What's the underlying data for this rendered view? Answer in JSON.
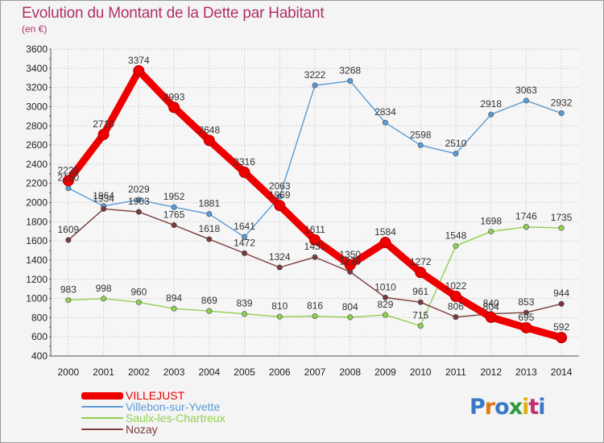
{
  "title": "Evolution du Montant de la Dette par Habitant",
  "unit": "(en €)",
  "logo": {
    "text": "Proxiti",
    "colors": [
      "#3a78c8",
      "#e07a10",
      "#3a78c8",
      "#2c9a3c",
      "#e0b010",
      "#c0306a",
      "#3a78c8"
    ]
  },
  "chart_data": {
    "type": "line",
    "x": [
      "2000",
      "2001",
      "2002",
      "2003",
      "2004",
      "2005",
      "2006",
      "2007",
      "2008",
      "2009",
      "2010",
      "2011",
      "2012",
      "2013",
      "2014"
    ],
    "ylim": [
      400,
      3600
    ],
    "yticks": [
      "400",
      "600",
      "800",
      "1000",
      "1200",
      "1400",
      "1600",
      "1800",
      "2000",
      "2200",
      "2400",
      "2600",
      "2800",
      "3000",
      "3200",
      "3400",
      "3600"
    ],
    "grid": true,
    "legend_position": "bottom-left",
    "series": [
      {
        "name": "VILLEJUST",
        "color": "#ee0000",
        "values": [
          2228,
          2710,
          3374,
          2993,
          2648,
          2316,
          1969,
          1611,
          1350,
          1584,
          1272,
          1022,
          804,
          695,
          592
        ],
        "labels": [
          "2228",
          "2710",
          "3374",
          "2993",
          "2648",
          "2316",
          "1969",
          "1611",
          "1350",
          "1584",
          "1272",
          "1022",
          "804",
          "695",
          "592"
        ]
      },
      {
        "name": "Villebon-sur-Yvette",
        "color": "#5b9bd5",
        "values": [
          2150,
          1964,
          2029,
          1952,
          1881,
          1641,
          2063,
          3222,
          3268,
          2834,
          2598,
          2510,
          2918,
          3063,
          2932
        ],
        "labels": [
          "2150",
          "1964",
          "2029",
          "1952",
          "1881",
          "1641",
          "2063",
          "3222",
          "3268",
          "2834",
          "2598",
          "2510",
          "2918",
          "3063",
          "2932"
        ]
      },
      {
        "name": "Saulx-les-Chartreux",
        "color": "#92d050",
        "values": [
          983,
          998,
          960,
          894,
          869,
          839,
          810,
          816,
          804,
          829,
          715,
          1548,
          1698,
          1746,
          1735
        ],
        "labels": [
          "983",
          "998",
          "960",
          "894",
          "869",
          "839",
          "810",
          "816",
          "804",
          "829",
          "715",
          "1548",
          "1698",
          "1746",
          "1735"
        ]
      },
      {
        "name": "Nozay",
        "color": "#7b3b3b",
        "values": [
          1609,
          1934,
          1903,
          1765,
          1618,
          1472,
          1324,
          1431,
          1278,
          1010,
          961,
          806,
          840,
          853,
          944
        ],
        "labels": [
          "1609",
          "1934",
          "1903",
          "1765",
          "1618",
          "1472",
          "1324",
          "1431",
          "1278",
          "1010",
          "961",
          "806",
          "840",
          "853",
          "944"
        ]
      }
    ]
  }
}
